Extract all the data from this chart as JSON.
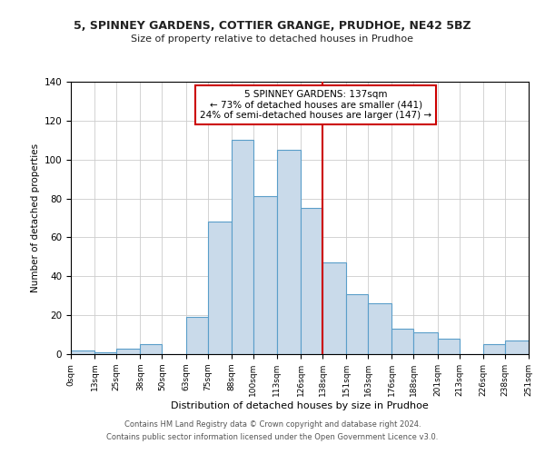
{
  "title": "5, SPINNEY GARDENS, COTTIER GRANGE, PRUDHOE, NE42 5BZ",
  "subtitle": "Size of property relative to detached houses in Prudhoe",
  "xlabel": "Distribution of detached houses by size in Prudhoe",
  "ylabel": "Number of detached properties",
  "bin_labels": [
    "0sqm",
    "13sqm",
    "25sqm",
    "38sqm",
    "50sqm",
    "63sqm",
    "75sqm",
    "88sqm",
    "100sqm",
    "113sqm",
    "126sqm",
    "138sqm",
    "151sqm",
    "163sqm",
    "176sqm",
    "188sqm",
    "201sqm",
    "213sqm",
    "226sqm",
    "238sqm",
    "251sqm"
  ],
  "bin_edges": [
    0,
    13,
    25,
    38,
    50,
    63,
    75,
    88,
    100,
    113,
    126,
    138,
    151,
    163,
    176,
    188,
    201,
    213,
    226,
    238,
    251
  ],
  "bar_heights": [
    2,
    1,
    3,
    5,
    0,
    19,
    68,
    110,
    81,
    105,
    75,
    47,
    31,
    26,
    13,
    11,
    8,
    0,
    5,
    7
  ],
  "bar_color": "#c9daea",
  "bar_edge_color": "#5a9ec9",
  "vline_x": 138,
  "vline_color": "#cc0000",
  "annotation_text": "5 SPINNEY GARDENS: 137sqm\n← 73% of detached houses are smaller (441)\n24% of semi-detached houses are larger (147) →",
  "annotation_box_color": "#cc0000",
  "ylim": [
    0,
    140
  ],
  "footer_line1": "Contains HM Land Registry data © Crown copyright and database right 2024.",
  "footer_line2": "Contains public sector information licensed under the Open Government Licence v3.0.",
  "background_color": "#ffffff",
  "grid_color": "#cccccc"
}
